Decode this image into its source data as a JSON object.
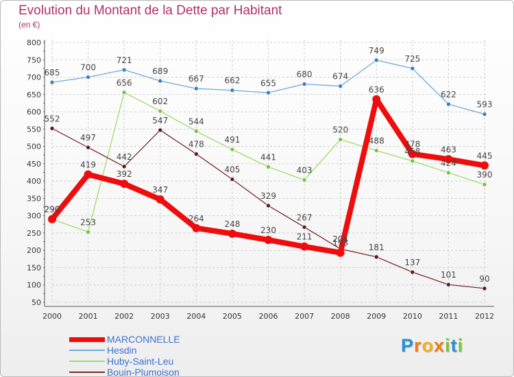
{
  "title": "Evolution du Montant de la Dette par Habitant",
  "subtitle": "(en €)",
  "logo": {
    "letters": [
      "P",
      "r",
      "o",
      "x",
      "i",
      "t",
      "i"
    ],
    "colors": [
      "#2a8fd6",
      "#ef7b17",
      "#f2b21a",
      "#ef7b17",
      "#7cc242",
      "#2a8fd6",
      "#7cc242"
    ]
  },
  "chart_data": {
    "type": "line",
    "title": "Evolution du Montant de la Dette par Habitant",
    "ylabel": "(en €)",
    "xlabel": "",
    "x": [
      "2000",
      "2001",
      "2002",
      "2003",
      "2004",
      "2005",
      "2006",
      "2007",
      "2008",
      "2009",
      "2010",
      "2011",
      "2012"
    ],
    "ylim": [
      50,
      800
    ],
    "yticks": [
      "50",
      "100",
      "150",
      "200",
      "250",
      "300",
      "350",
      "400",
      "450",
      "500",
      "550",
      "600",
      "650",
      "700",
      "750",
      "800"
    ],
    "grid": true,
    "legend_position": "bottom-left",
    "series": [
      {
        "name": "Hesdin",
        "color": "#6fa7d8",
        "point_color": "#3a7fc0",
        "values": [
          685,
          700,
          721,
          689,
          667,
          662,
          655,
          680,
          674,
          749,
          725,
          622,
          593
        ],
        "labels": [
          "685",
          "700",
          "721",
          "689",
          "667",
          "662",
          "655",
          "680",
          "674",
          "749",
          "725",
          "622",
          "593"
        ]
      },
      {
        "name": "Huby-Saint-Leu",
        "color": "#9edc6a",
        "point_color": "#7cc242",
        "values": [
          290,
          253,
          656,
          602,
          544,
          491,
          441,
          403,
          520,
          488,
          458,
          424,
          390
        ],
        "labels": [
          "290",
          "253",
          "656",
          "602",
          "544",
          "491",
          "441",
          "403",
          "520",
          "488",
          "458",
          "424",
          "390"
        ]
      },
      {
        "name": "Bouin-Plumoison",
        "color": "#7a2a2a",
        "point_color": "#5e1a1a",
        "values": [
          552,
          497,
          442,
          547,
          478,
          405,
          329,
          267,
          204,
          181,
          137,
          101,
          90
        ],
        "labels": [
          "552",
          "497",
          "442",
          "547",
          "478",
          "405",
          "329",
          "267",
          "204",
          "181",
          "137",
          "101",
          "90"
        ]
      },
      {
        "name": "MARCONNELLE",
        "color": "#ee0d0d",
        "point_color": "#ee0d0d",
        "values": [
          290,
          419,
          392,
          347,
          264,
          248,
          230,
          211,
          193,
          636,
          478,
          463,
          445
        ],
        "labels": [
          "290",
          "419",
          "392",
          "347",
          "264",
          "248",
          "230",
          "211",
          "193",
          "636",
          "478",
          "463",
          "445"
        ]
      }
    ]
  },
  "legend": [
    {
      "label": "MARCONNELLE",
      "color": "#ee0d0d",
      "text_color": "#3d6fd0",
      "thickness": 7
    },
    {
      "label": "Hesdin",
      "color": "#6fa7d8",
      "text_color": "#3d6fd0",
      "thickness": 2
    },
    {
      "label": "Huby-Saint-Leu",
      "color": "#9edc6a",
      "text_color": "#3d6fd0",
      "thickness": 2
    },
    {
      "label": "Bouin-Plumoison",
      "color": "#7a2a2a",
      "text_color": "#3d6fd0",
      "thickness": 2
    }
  ]
}
